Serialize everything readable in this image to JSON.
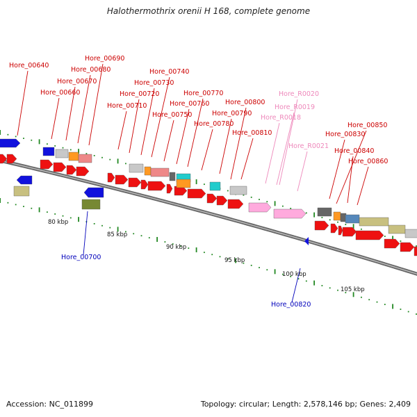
{
  "title": "Halothermothrix orenii H 168, complete genome",
  "footer": {
    "accession": "Accession: NC_011899",
    "summary": "Topology: circular; Length: 2,578,146 bp; Genes: 2,409"
  },
  "colors": {
    "forward_label": "#cc0000",
    "reverse_label": "#0000bb",
    "rna_label": "#ee88bb",
    "axis": "#888888",
    "tick": "#228822"
  },
  "scale_labels": [
    "80 kbp",
    "85 kbp",
    "90 kbp",
    "95 kbp",
    "100 kbp",
    "105 kbp"
  ],
  "gene_labels": [
    "Hore_00640",
    "Hore_00660",
    "Hore_00670",
    "Hore_00680",
    "Hore_00690",
    "Hore_00710",
    "Hore_00720",
    "Hore_00730",
    "Hore_00740",
    "Hore_00750",
    "Hore_00760",
    "Hore_00770",
    "Hore_00780",
    "Hore_00790",
    "Hore_00800",
    "Hore_00810",
    "Hore_R0018",
    "Hore_R0019",
    "Hore_R0020",
    "Hore_R0021",
    "Hore_00830",
    "Hore_00840",
    "Hore_00850",
    "Hore_00860",
    "Hore_00700",
    "Hore_00820"
  ]
}
